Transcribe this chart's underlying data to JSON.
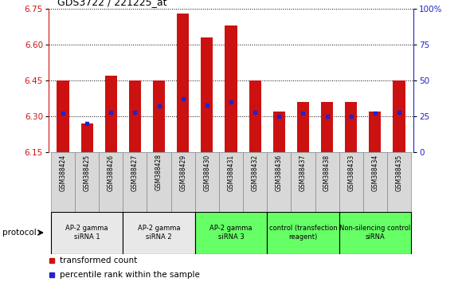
{
  "title": "GDS3722 / 221225_at",
  "samples": [
    "GSM388424",
    "GSM388425",
    "GSM388426",
    "GSM388427",
    "GSM388428",
    "GSM388429",
    "GSM388430",
    "GSM388431",
    "GSM388432",
    "GSM388436",
    "GSM388437",
    "GSM388438",
    "GSM388433",
    "GSM388434",
    "GSM388435"
  ],
  "transformed_count": [
    6.45,
    6.27,
    6.47,
    6.45,
    6.45,
    6.73,
    6.63,
    6.68,
    6.45,
    6.32,
    6.36,
    6.36,
    6.36,
    6.32,
    6.45
  ],
  "percentile_rank": [
    27,
    20,
    28,
    28,
    32,
    37,
    33,
    35,
    28,
    25,
    27,
    25,
    25,
    27,
    28
  ],
  "y_min": 6.15,
  "y_max": 6.75,
  "y_ticks": [
    6.15,
    6.3,
    6.45,
    6.6,
    6.75
  ],
  "y2_ticks": [
    0,
    25,
    50,
    75,
    100
  ],
  "bar_color": "#cc1111",
  "dot_color": "#2222cc",
  "bg_color": "#ffffff",
  "groups": [
    {
      "label": "AP-2 gamma\nsiRNA 1",
      "indices": [
        0,
        1,
        2
      ],
      "color": "#e8e8e8"
    },
    {
      "label": "AP-2 gamma\nsiRNA 2",
      "indices": [
        3,
        4,
        5
      ],
      "color": "#e8e8e8"
    },
    {
      "label": "AP-2 gamma\nsiRNA 3",
      "indices": [
        6,
        7,
        8
      ],
      "color": "#66ff66"
    },
    {
      "label": "control (transfection\nreagent)",
      "indices": [
        9,
        10,
        11
      ],
      "color": "#66ff66"
    },
    {
      "label": "Non-silencing control\nsiRNA",
      "indices": [
        12,
        13,
        14
      ],
      "color": "#66ff66"
    }
  ],
  "legend_labels": [
    "transformed count",
    "percentile rank within the sample"
  ],
  "protocol_label": "protocol"
}
